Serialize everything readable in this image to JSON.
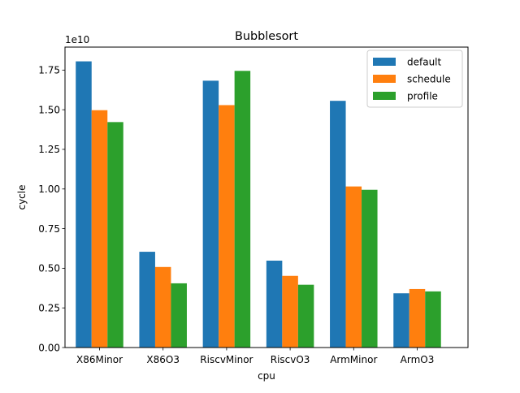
{
  "chart_data": {
    "type": "bar",
    "title": "Bubblesort",
    "xlabel": "cpu",
    "ylabel": "cycle",
    "offset_text": "1e10",
    "categories": [
      "X86Minor",
      "X86O3",
      "RiscvMinor",
      "RiscvO3",
      "ArmMinor",
      "ArmO3"
    ],
    "series": [
      {
        "name": "default",
        "color": "#1f77b4",
        "values": [
          1.805,
          0.604,
          1.683,
          0.548,
          1.556,
          0.342
        ]
      },
      {
        "name": "schedule",
        "color": "#ff7f0e",
        "values": [
          1.497,
          0.508,
          1.529,
          0.452,
          1.016,
          0.369
        ]
      },
      {
        "name": "profile",
        "color": "#2ca02c",
        "values": [
          1.422,
          0.405,
          1.745,
          0.396,
          0.995,
          0.354
        ]
      }
    ],
    "ylim": [
      0,
      1.895
    ],
    "yticks": [
      0,
      0.25,
      0.5,
      0.75,
      1.0,
      1.25,
      1.5,
      1.75
    ],
    "ytick_labels": [
      "0.00",
      "0.25",
      "0.50",
      "0.75",
      "1.00",
      "1.25",
      "1.50",
      "1.75"
    ],
    "legend_position": "top-right",
    "grid": false
  }
}
